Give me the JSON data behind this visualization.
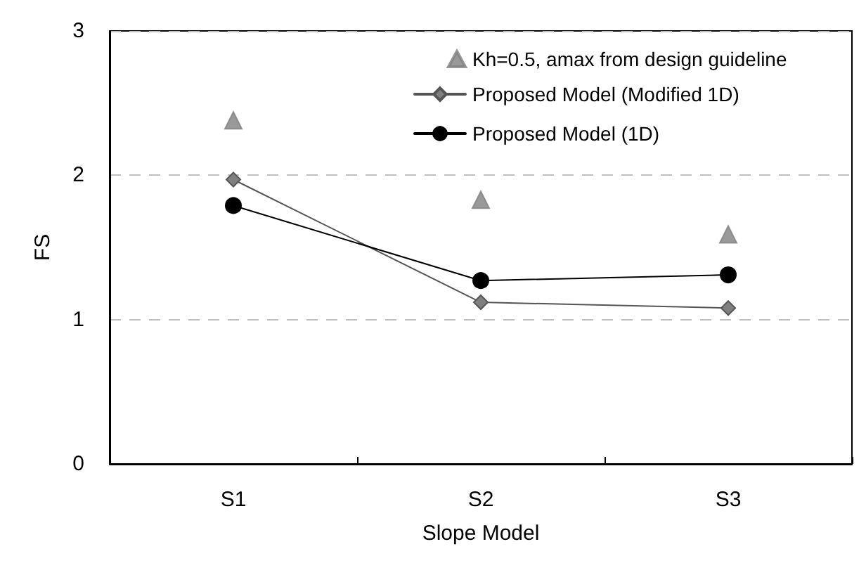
{
  "chart_data": {
    "type": "line",
    "xlabel": "Slope Model",
    "ylabel": "FS",
    "categories": [
      "S1",
      "S2",
      "S3"
    ],
    "series": [
      {
        "name": "Kh=0.5, amax from design guideline",
        "type": "scatter",
        "marker": "triangle",
        "color": "#7f7f7f",
        "values": [
          2.38,
          1.83,
          1.59
        ]
      },
      {
        "name": "Proposed Model (Modified 1D)",
        "type": "line",
        "marker": "diamond",
        "color": "#808080",
        "values": [
          1.97,
          1.12,
          1.08
        ]
      },
      {
        "name": "Proposed Model (1D)",
        "type": "line",
        "marker": "circle",
        "color": "#000000",
        "values": [
          1.79,
          1.27,
          1.31
        ]
      }
    ],
    "ylim": [
      0,
      3
    ],
    "yticks": [
      0,
      1,
      2,
      3
    ],
    "grid": "y",
    "legend": "top right",
    "line_style": "solid"
  }
}
